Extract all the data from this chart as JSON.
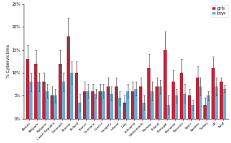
{
  "countries": [
    "Austria",
    "Belgium",
    "Bulgaria",
    "Czech Republic",
    "Denmark",
    "Estonia",
    "Finland",
    "France",
    "Germany",
    "Greece",
    "Hungary",
    "Ireland",
    "Italy",
    "Lithuania",
    "Netherlands",
    "Norway",
    "Poland",
    "Portugal",
    "Romania",
    "Slovenia",
    "Spain",
    "Sweden",
    "Turkey",
    "UK",
    "Total"
  ],
  "girls": [
    13,
    12,
    8,
    5,
    12,
    18,
    10,
    6,
    6,
    6,
    7,
    7,
    3.5,
    6,
    7,
    11,
    7,
    15,
    8,
    10,
    5,
    9,
    3,
    11,
    8
  ],
  "boys": [
    8,
    8,
    6,
    5,
    8,
    10,
    3.5,
    6,
    5.5,
    6,
    5.5,
    4.5,
    6,
    6.5,
    3.5,
    6,
    7,
    3,
    5,
    5.5,
    3,
    7,
    5,
    7,
    6.5
  ],
  "girls_err": [
    3,
    3,
    2,
    2,
    3,
    4,
    2.5,
    2,
    1.5,
    1.5,
    2,
    2,
    1.5,
    2,
    2,
    3,
    2,
    4,
    2.5,
    3,
    1.5,
    2.5,
    1.5,
    2.5,
    1
  ],
  "boys_err": [
    2,
    2,
    1.5,
    1.5,
    2,
    2.5,
    2,
    1.5,
    1,
    1.5,
    1.5,
    1.5,
    1.5,
    1.5,
    1.5,
    2,
    1.5,
    2,
    1.5,
    2,
    1,
    2,
    1,
    2,
    0.8
  ],
  "girls_color": "#C0243B",
  "boys_color": "#6BAED6",
  "ylabel": "% Cybervictims",
  "ylim": [
    0,
    25
  ],
  "yticks": [
    0,
    5,
    10,
    15,
    20,
    25
  ],
  "ytick_labels": [
    "0%",
    "5%",
    "10%",
    "15%",
    "20%",
    "25%"
  ],
  "bar_width": 0.4,
  "title": ""
}
